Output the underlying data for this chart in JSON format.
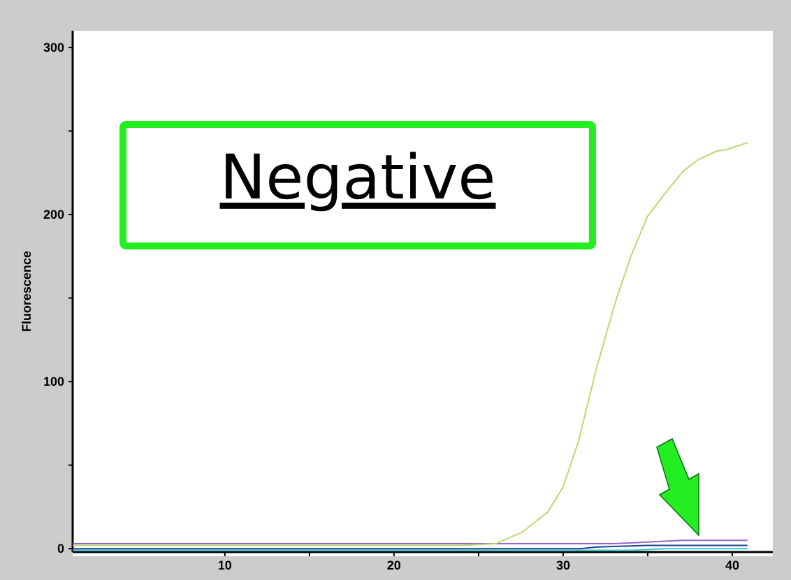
{
  "chart_data": {
    "type": "line",
    "ylabel": "Fluorescence",
    "annotations": [
      "Negative"
    ],
    "xlim": [
      1,
      42.4
    ],
    "ylim": [
      -2,
      310
    ],
    "xticks": [
      10,
      {
        "value": 15,
        "label": null
      },
      20,
      {
        "value": 25,
        "label": null
      },
      30,
      {
        "value": 35,
        "label": null
      },
      40
    ],
    "yticks": [
      0,
      {
        "value": 50,
        "label": null
      },
      100,
      {
        "value": 150,
        "label": null
      },
      200,
      {
        "value": 250,
        "label": null
      },
      300
    ],
    "grid": false,
    "series": [
      {
        "color": "#b8dc70",
        "x": [
          1,
          10,
          20,
          24,
          26,
          27.6,
          29.1,
          30,
          30.9,
          32,
          33.1,
          34,
          35,
          35.9,
          37.1,
          38,
          39.1,
          39.7,
          40.9
        ],
        "values": [
          2,
          2,
          2,
          2,
          3,
          10,
          22,
          37,
          64,
          109,
          148,
          175,
          199,
          211,
          226,
          233,
          238,
          239,
          243
        ]
      },
      {
        "color": "#9966cc",
        "x": [
          1,
          10,
          20,
          31,
          33,
          35,
          37,
          39,
          40.9
        ],
        "values": [
          3,
          3,
          3,
          3,
          3,
          4,
          5,
          5,
          5
        ]
      },
      {
        "color": "#1f3f8f",
        "x": [
          1,
          10,
          20,
          31,
          32,
          35,
          38,
          40.9
        ],
        "values": [
          0,
          0,
          0,
          0,
          1,
          2,
          2,
          2
        ]
      },
      {
        "color": "#33cccc",
        "x": [
          1,
          10,
          20,
          30,
          34,
          36,
          38,
          40.9
        ],
        "values": [
          -1,
          -1,
          -1,
          -1,
          -1,
          0,
          0,
          0
        ]
      }
    ]
  }
}
